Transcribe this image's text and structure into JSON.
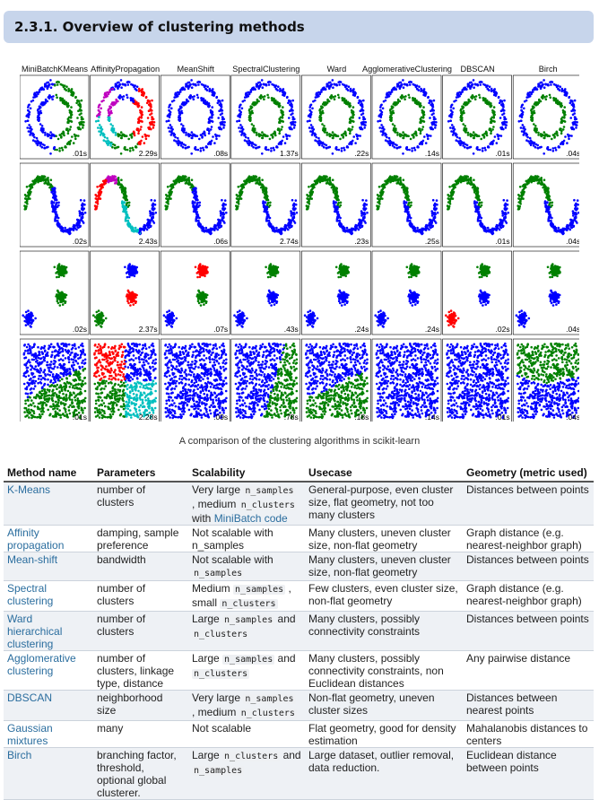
{
  "section": {
    "title": "2.3.1. Overview of clustering methods"
  },
  "figure": {
    "algorithms": [
      "MiniBatchKMeans",
      "AffinityPropagation",
      "MeanShift",
      "SpectralClustering",
      "Ward",
      "AgglomerativeClustering",
      "DBSCAN",
      "Birch"
    ],
    "timings": [
      [
        ".01s",
        "2.29s",
        ".08s",
        "1.37s",
        ".22s",
        ".14s",
        ".01s",
        ".04s"
      ],
      [
        ".02s",
        "2.43s",
        ".06s",
        "2.74s",
        ".23s",
        ".25s",
        ".01s",
        ".04s"
      ],
      [
        ".02s",
        "2.37s",
        ".07s",
        ".43s",
        ".24s",
        ".24s",
        ".02s",
        ".04s"
      ],
      [
        ".01s",
        "2.28s",
        ".09s",
        ".78s",
        ".18s",
        ".14s",
        ".01s",
        ".04s"
      ]
    ],
    "colors": {
      "blue": "#0000ff",
      "green": "#008000",
      "red": "#ff0000",
      "cyan": "#00bfbf",
      "magenta": "#bf00bf"
    },
    "caption": "A comparison of the clustering algorithms in scikit-learn"
  },
  "table": {
    "headers": [
      "Method name",
      "Parameters",
      "Scalability",
      "Usecase",
      "Geometry (metric used)"
    ],
    "rows": [
      {
        "name": "K-Means",
        "params": "number of clusters",
        "scal": [
          {
            "t": "Very large "
          },
          {
            "c": "n_samples"
          },
          {
            "t": " , medium "
          },
          {
            "c": "n_clusters"
          },
          {
            "t": " with "
          },
          {
            "l": "MiniBatch code"
          }
        ],
        "use": "General-purpose, even cluster size, flat geometry, not too many clusters",
        "geom": "Distances between points"
      },
      {
        "name": "Affinity propagation",
        "params": "damping, sample preference",
        "scal": [
          {
            "t": "Not scalable with n_samples"
          }
        ],
        "use": "Many clusters, uneven cluster size, non-flat geometry",
        "geom": "Graph distance (e.g. nearest-neighbor graph)"
      },
      {
        "name": "Mean-shift",
        "params": "bandwidth",
        "scal": [
          {
            "t": "Not scalable with "
          },
          {
            "c": "n_samples"
          }
        ],
        "use": "Many clusters, uneven cluster size, non-flat geometry",
        "geom": "Distances between points"
      },
      {
        "name": "Spectral clustering",
        "params": "number of clusters",
        "scal": [
          {
            "t": "Medium "
          },
          {
            "c": "n_samples"
          },
          {
            "t": " , small "
          },
          {
            "c": "n_clusters"
          }
        ],
        "use": "Few clusters, even cluster size, non-flat geometry",
        "geom": "Graph distance (e.g. nearest-neighbor graph)"
      },
      {
        "name": "Ward hierarchical clustering",
        "params": "number of clusters",
        "scal": [
          {
            "t": "Large "
          },
          {
            "c": "n_samples"
          },
          {
            "t": " and "
          },
          {
            "c": "n_clusters"
          }
        ],
        "use": "Many clusters, possibly connectivity constraints",
        "geom": "Distances between points"
      },
      {
        "name": "Agglomerative clustering",
        "params": "number of clusters, linkage type, distance",
        "scal": [
          {
            "t": "Large "
          },
          {
            "c": "n_samples"
          },
          {
            "t": " and "
          },
          {
            "c": "n_clusters"
          }
        ],
        "use": "Many clusters, possibly connectivity constraints, non Euclidean distances",
        "geom": "Any pairwise distance"
      },
      {
        "name": "DBSCAN",
        "params": "neighborhood size",
        "scal": [
          {
            "t": "Very large "
          },
          {
            "c": "n_samples"
          },
          {
            "t": " , medium "
          },
          {
            "c": "n_clusters"
          }
        ],
        "use": "Non-flat geometry, uneven cluster sizes",
        "geom": "Distances between nearest points"
      },
      {
        "name": "Gaussian mixtures",
        "params": "many",
        "scal": [
          {
            "t": "Not scalable"
          }
        ],
        "use": "Flat geometry, good for density estimation",
        "geom": "Mahalanobis distances to centers"
      },
      {
        "name": "Birch",
        "params": "branching factor, threshold, optional global clusterer.",
        "scal": [
          {
            "t": "Large "
          },
          {
            "c": "n_clusters"
          },
          {
            "t": " and "
          },
          {
            "c": "n_samples"
          }
        ],
        "use": "Large dataset, outlier removal, data reduction.",
        "geom": "Euclidean distance between points"
      }
    ]
  }
}
